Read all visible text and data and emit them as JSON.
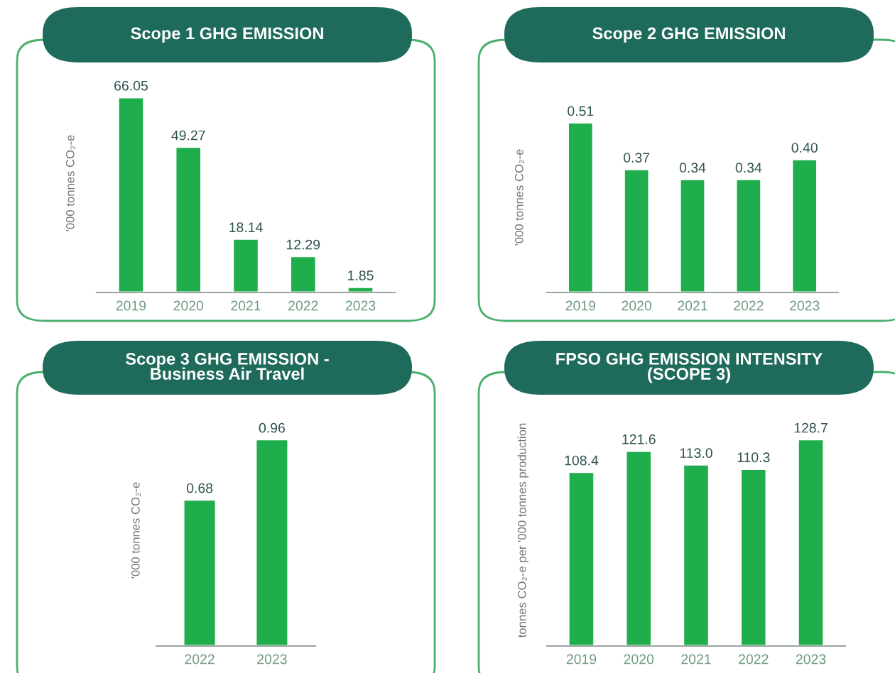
{
  "chart_data": [
    {
      "type": "bar",
      "title": "Scope 1 GHG EMISSION",
      "ylabel": "'000 tonnes CO₂-e",
      "categories": [
        "2019",
        "2020",
        "2021",
        "2022",
        "2023"
      ],
      "values": [
        66.05,
        49.27,
        18.14,
        12.29,
        1.85
      ],
      "value_labels": [
        "66.05",
        "49.27",
        "18.14",
        "12.29",
        "1.85"
      ],
      "color": "#1fae4b",
      "tick_labels": "x",
      "grid": false,
      "legend": false
    },
    {
      "type": "bar",
      "title": "Scope 2 GHG EMISSION",
      "ylabel": "'000 tonnes CO₂-e",
      "categories": [
        "2019",
        "2020",
        "2021",
        "2022",
        "2023"
      ],
      "values": [
        0.51,
        0.37,
        0.34,
        0.34,
        0.4
      ],
      "value_labels": [
        "0.51",
        "0.37",
        "0.34",
        "0.34",
        "0.40"
      ],
      "color": "#1fae4b",
      "tick_labels": "x",
      "grid": false,
      "legend": false
    },
    {
      "type": "bar",
      "title": "Scope 3 GHG EMISSION -\nBusiness Air Travel",
      "ylabel": "'000 tonnes CO₂-e",
      "categories": [
        "2022",
        "2023"
      ],
      "values": [
        0.68,
        0.96
      ],
      "value_labels": [
        "0.68",
        "0.96"
      ],
      "color": "#1fae4b",
      "tick_labels": "x",
      "grid": false,
      "legend": false
    },
    {
      "type": "bar",
      "title": "FPSO GHG EMISSION INTENSITY\n(SCOPE 3)",
      "ylabel": "tonnes CO₂-e per '000 tonnes production",
      "categories": [
        "2019",
        "2020",
        "2021",
        "2022",
        "2023"
      ],
      "values": [
        108.4,
        121.6,
        113.0,
        110.3,
        128.7
      ],
      "value_labels": [
        "108.4",
        "121.6",
        "113.0",
        "110.3",
        "128.7"
      ],
      "color": "#1fae4b",
      "tick_labels": "x",
      "grid": false,
      "legend": false
    }
  ]
}
